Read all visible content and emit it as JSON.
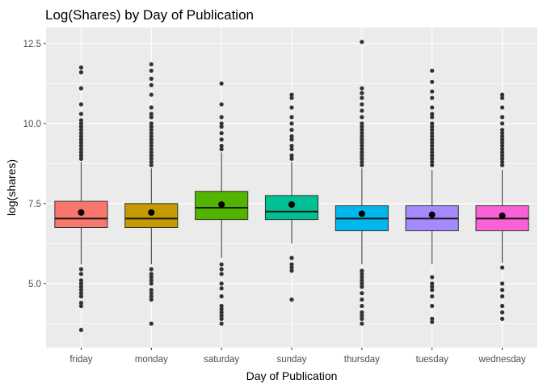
{
  "chart_data": {
    "type": "boxplot",
    "title": "Log(Shares) by Day of Publication",
    "xlabel": "Day of Publication",
    "ylabel": "log(shares)",
    "ylim": [
      3.0,
      13.0
    ],
    "yticks": [
      5.0,
      7.5,
      10.0,
      12.5
    ],
    "ytick_labels": [
      "5.0",
      "7.5",
      "10.0",
      "12.5"
    ],
    "grid": true,
    "legend": "none",
    "categories": [
      "friday",
      "monday",
      "saturday",
      "sunday",
      "thursday",
      "tuesday",
      "wednesday"
    ],
    "colors": [
      "#F8766D",
      "#C49A00",
      "#53B400",
      "#00C094",
      "#00B6EB",
      "#A58AFF",
      "#FB61D7"
    ],
    "background_color": "#EBEBEB",
    "grid_color": "#FFFFFF",
    "boxes": [
      {
        "category": "friday",
        "whisker_low": 5.6,
        "q1": 6.75,
        "median": 7.03,
        "q3": 7.57,
        "whisker_high": 8.8,
        "mean": 7.22,
        "outliers": [
          3.55,
          4.3,
          4.4,
          4.6,
          4.7,
          4.8,
          4.9,
          5.0,
          5.1,
          5.3,
          5.45,
          8.9,
          9.0,
          9.1,
          9.2,
          9.3,
          9.4,
          9.5,
          9.6,
          9.7,
          9.8,
          9.9,
          10.0,
          10.1,
          10.3,
          10.6,
          11.1,
          11.6,
          11.75
        ]
      },
      {
        "category": "monday",
        "whisker_low": 5.6,
        "q1": 6.75,
        "median": 7.03,
        "q3": 7.5,
        "whisker_high": 8.6,
        "mean": 7.22,
        "outliers": [
          3.75,
          4.5,
          4.6,
          4.7,
          4.8,
          5.0,
          5.1,
          5.2,
          5.3,
          5.45,
          8.7,
          8.8,
          8.9,
          9.0,
          9.1,
          9.2,
          9.3,
          9.4,
          9.5,
          9.6,
          9.7,
          9.8,
          9.9,
          10.0,
          10.2,
          10.3,
          10.5,
          10.9,
          11.2,
          11.4,
          11.65,
          11.85
        ]
      },
      {
        "category": "saturday",
        "whisker_low": 5.8,
        "q1": 7.0,
        "median": 7.37,
        "q3": 7.88,
        "whisker_high": 9.1,
        "mean": 7.47,
        "outliers": [
          3.75,
          3.9,
          4.0,
          4.1,
          4.2,
          4.3,
          4.6,
          4.85,
          5.0,
          5.3,
          5.45,
          5.6,
          9.2,
          9.3,
          9.5,
          9.7,
          9.9,
          10.0,
          10.2,
          10.6,
          11.25
        ]
      },
      {
        "category": "sunday",
        "whisker_low": 6.25,
        "q1": 7.0,
        "median": 7.25,
        "q3": 7.75,
        "whisker_high": 8.8,
        "mean": 7.47,
        "outliers": [
          4.5,
          5.4,
          5.5,
          5.6,
          5.8,
          8.9,
          9.0,
          9.2,
          9.3,
          9.5,
          9.6,
          9.8,
          10.0,
          10.2,
          10.5,
          10.8,
          10.9
        ]
      },
      {
        "category": "thursday",
        "whisker_low": 5.6,
        "q1": 6.65,
        "median": 7.03,
        "q3": 7.43,
        "whisker_high": 8.6,
        "mean": 7.18,
        "outliers": [
          3.75,
          3.9,
          4.0,
          4.1,
          4.3,
          4.5,
          4.7,
          4.9,
          5.0,
          5.1,
          5.2,
          5.3,
          5.4,
          8.7,
          8.8,
          8.9,
          9.0,
          9.1,
          9.2,
          9.3,
          9.4,
          9.5,
          9.6,
          9.7,
          9.8,
          9.9,
          10.0,
          10.2,
          10.4,
          10.6,
          10.8,
          10.95,
          11.1,
          12.55
        ]
      },
      {
        "category": "tuesday",
        "whisker_low": 5.6,
        "q1": 6.65,
        "median": 7.03,
        "q3": 7.43,
        "whisker_high": 8.55,
        "mean": 7.15,
        "outliers": [
          3.8,
          3.9,
          4.3,
          4.6,
          4.8,
          4.9,
          5.0,
          5.2,
          8.7,
          8.8,
          8.9,
          9.0,
          9.1,
          9.2,
          9.3,
          9.4,
          9.5,
          9.6,
          9.7,
          9.8,
          9.9,
          10.0,
          10.2,
          10.3,
          10.5,
          10.8,
          11.0,
          11.3,
          11.65
        ]
      },
      {
        "category": "wednesday",
        "whisker_low": 5.65,
        "q1": 6.65,
        "median": 7.03,
        "q3": 7.43,
        "whisker_high": 8.55,
        "mean": 7.12,
        "outliers": [
          3.9,
          4.1,
          4.3,
          4.6,
          4.8,
          5.0,
          5.5,
          8.7,
          8.8,
          8.9,
          9.0,
          9.1,
          9.2,
          9.3,
          9.4,
          9.5,
          9.6,
          9.7,
          9.8,
          10.0,
          10.2,
          10.5,
          10.8,
          10.9
        ]
      }
    ]
  }
}
